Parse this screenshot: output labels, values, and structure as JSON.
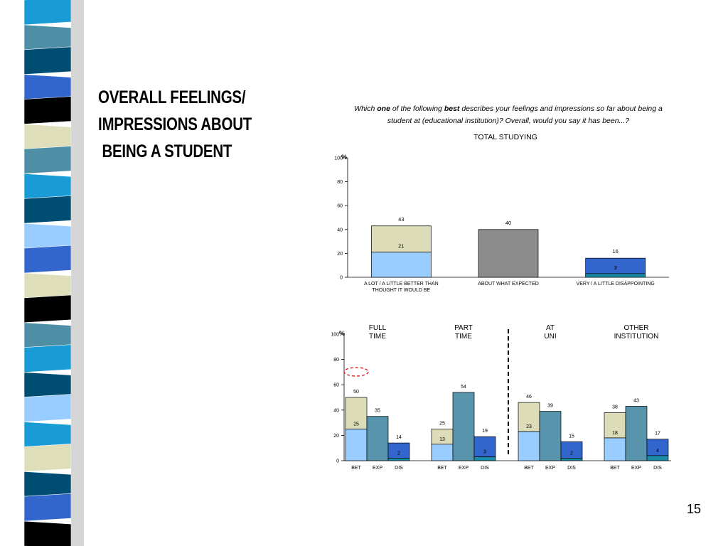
{
  "slide": {
    "title_lines": [
      "OVERALL FEELINGS/",
      "IMPRESSIONS ABOUT",
      " BEING A STUDENT"
    ],
    "question": {
      "part1": "Which ",
      "em1": "one",
      "part2": " of the following ",
      "em2": "best",
      "part3": " describes your feelings and impressions so far about being a student at (educational institution)?  Overall, would you say it has been...?"
    },
    "page_number": "15"
  },
  "colors": {
    "light_blue": "#99ccff",
    "beige": "#dddcb8",
    "gray": "#8c8c8c",
    "teal": "#5894ab",
    "royal_blue": "#3366cc",
    "dark_teal": "#1b8ca6",
    "highlight_ellipse": "#dd0000",
    "strip": [
      "#199bd5",
      "#4f8fa6",
      "#004d74",
      "#3366cc",
      "#000000",
      "#dedfba",
      "#4f8fa6",
      "#199bd5",
      "#004d74",
      "#99ccff",
      "#3366cc",
      "#dedfba",
      "#000000",
      "#4f8fa6",
      "#199bd5",
      "#004d74",
      "#99ccff",
      "#199bd5",
      "#dedfba",
      "#004d74",
      "#3366cc",
      "#000000"
    ]
  },
  "chart_data": [
    {
      "type": "bar",
      "title": "TOTAL STUDYING",
      "ylabel": "%",
      "ylim": [
        0,
        100
      ],
      "yticks": [
        0,
        20,
        40,
        60,
        80,
        100
      ],
      "categories": [
        "A LOT / A LITTLE BETTER THAN THOUGHT IT WOULD BE",
        "ABOUT WHAT EXPECTED",
        "VERY / A LITTLE DISAPPOINTING"
      ],
      "category_lines": [
        [
          "A LOT / A LITTLE BETTER THAN",
          "THOUGHT IT WOULD BE"
        ],
        [
          "ABOUT WHAT EXPECTED"
        ],
        [
          "VERY / A LITTLE DISAPPOINTING"
        ]
      ],
      "bars": [
        {
          "total": 43,
          "inner": 21,
          "top_color": "beige",
          "base_color": "light_blue"
        },
        {
          "total": 40,
          "inner": null,
          "top_color": "gray",
          "base_color": null
        },
        {
          "total": 16,
          "inner": 3,
          "top_color": "royal_blue",
          "base_color": "dark_teal"
        }
      ]
    },
    {
      "type": "bar",
      "ylabel": "%",
      "ylim": [
        0,
        100
      ],
      "yticks": [
        0,
        20,
        40,
        60,
        80,
        100
      ],
      "bar_labels": [
        "BET",
        "EXP",
        "DIS"
      ],
      "groups": [
        {
          "label_lines": [
            "FULL",
            "TIME"
          ],
          "bars": [
            {
              "total": 50,
              "inner": 25,
              "top_color": "beige",
              "base_color": "light_blue"
            },
            {
              "total": 35,
              "inner": null,
              "top_color": "teal",
              "base_color": null
            },
            {
              "total": 14,
              "inner": 2,
              "top_color": "royal_blue",
              "base_color": "dark_teal"
            }
          ]
        },
        {
          "label_lines": [
            "PART",
            "TIME"
          ],
          "bars": [
            {
              "total": 25,
              "inner": 13,
              "top_color": "beige",
              "base_color": "light_blue"
            },
            {
              "total": 54,
              "inner": null,
              "top_color": "teal",
              "base_color": null
            },
            {
              "total": 19,
              "inner": 3,
              "top_color": "royal_blue",
              "base_color": "dark_teal"
            }
          ]
        },
        {
          "label_lines": [
            "AT",
            "UNI"
          ],
          "bars": [
            {
              "total": 46,
              "inner": 23,
              "top_color": "beige",
              "base_color": "light_blue"
            },
            {
              "total": 39,
              "inner": null,
              "top_color": "teal",
              "base_color": null
            },
            {
              "total": 15,
              "inner": 2,
              "top_color": "royal_blue",
              "base_color": "dark_teal"
            }
          ]
        },
        {
          "label_lines": [
            "OTHER",
            "INSTITUTION"
          ],
          "bars": [
            {
              "total": 38,
              "inner": 18,
              "top_color": "beige",
              "base_color": "light_blue"
            },
            {
              "total": 43,
              "inner": null,
              "top_color": "teal",
              "base_color": null
            },
            {
              "total": 17,
              "inner": 4,
              "top_color": "royal_blue",
              "base_color": "dark_teal"
            }
          ]
        }
      ]
    }
  ]
}
